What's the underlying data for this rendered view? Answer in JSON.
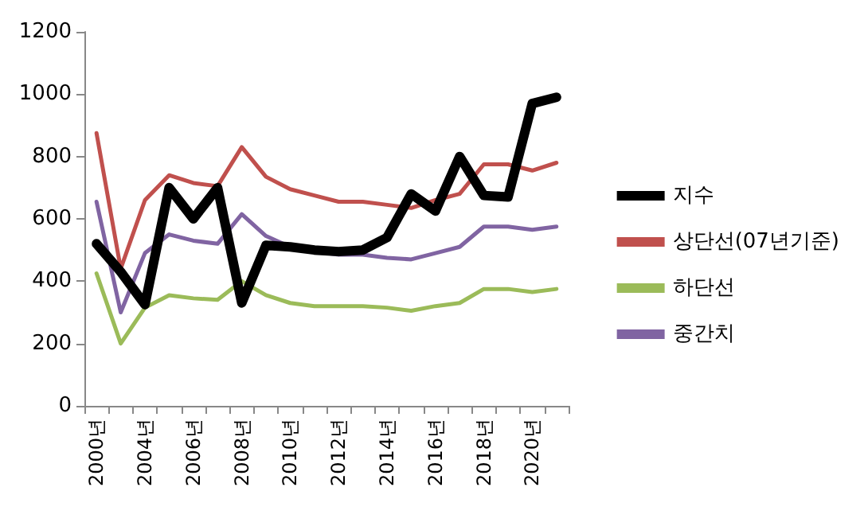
{
  "chart_data": {
    "type": "line",
    "categories": [
      "2000년",
      null,
      "2004년",
      null,
      "2006년",
      null,
      "2008년",
      null,
      "2010년",
      null,
      "2012년",
      null,
      "2014년",
      null,
      "2016년",
      null,
      "2018년",
      null,
      "2020년",
      null
    ],
    "series": [
      {
        "name": "지수",
        "color": "#000000",
        "values": [
          520,
          430,
          325,
          700,
          600,
          700,
          330,
          515,
          510,
          500,
          495,
          500,
          540,
          680,
          625,
          800,
          675,
          670,
          970,
          990
        ]
      },
      {
        "name": "상단선(07년기준)",
        "color": "#c0504d",
        "values": [
          875,
          440,
          660,
          740,
          715,
          705,
          830,
          735,
          695,
          675,
          655,
          655,
          645,
          635,
          660,
          680,
          775,
          775,
          755,
          780
        ]
      },
      {
        "name": "하단선",
        "color": "#9bbb59",
        "values": [
          425,
          200,
          315,
          355,
          345,
          340,
          400,
          355,
          330,
          320,
          320,
          320,
          315,
          305,
          320,
          330,
          375,
          375,
          365,
          375
        ]
      },
      {
        "name": "중간치",
        "color": "#8064a2",
        "values": [
          655,
          300,
          490,
          550,
          530,
          520,
          615,
          545,
          510,
          495,
          485,
          485,
          475,
          470,
          490,
          510,
          575,
          575,
          565,
          575
        ]
      }
    ],
    "ylim": [
      0,
      1200
    ],
    "yticks": [
      0,
      200,
      400,
      600,
      800,
      1000,
      1200
    ],
    "grid": false,
    "legend": "right",
    "marker": "none",
    "line_style": "solid"
  }
}
